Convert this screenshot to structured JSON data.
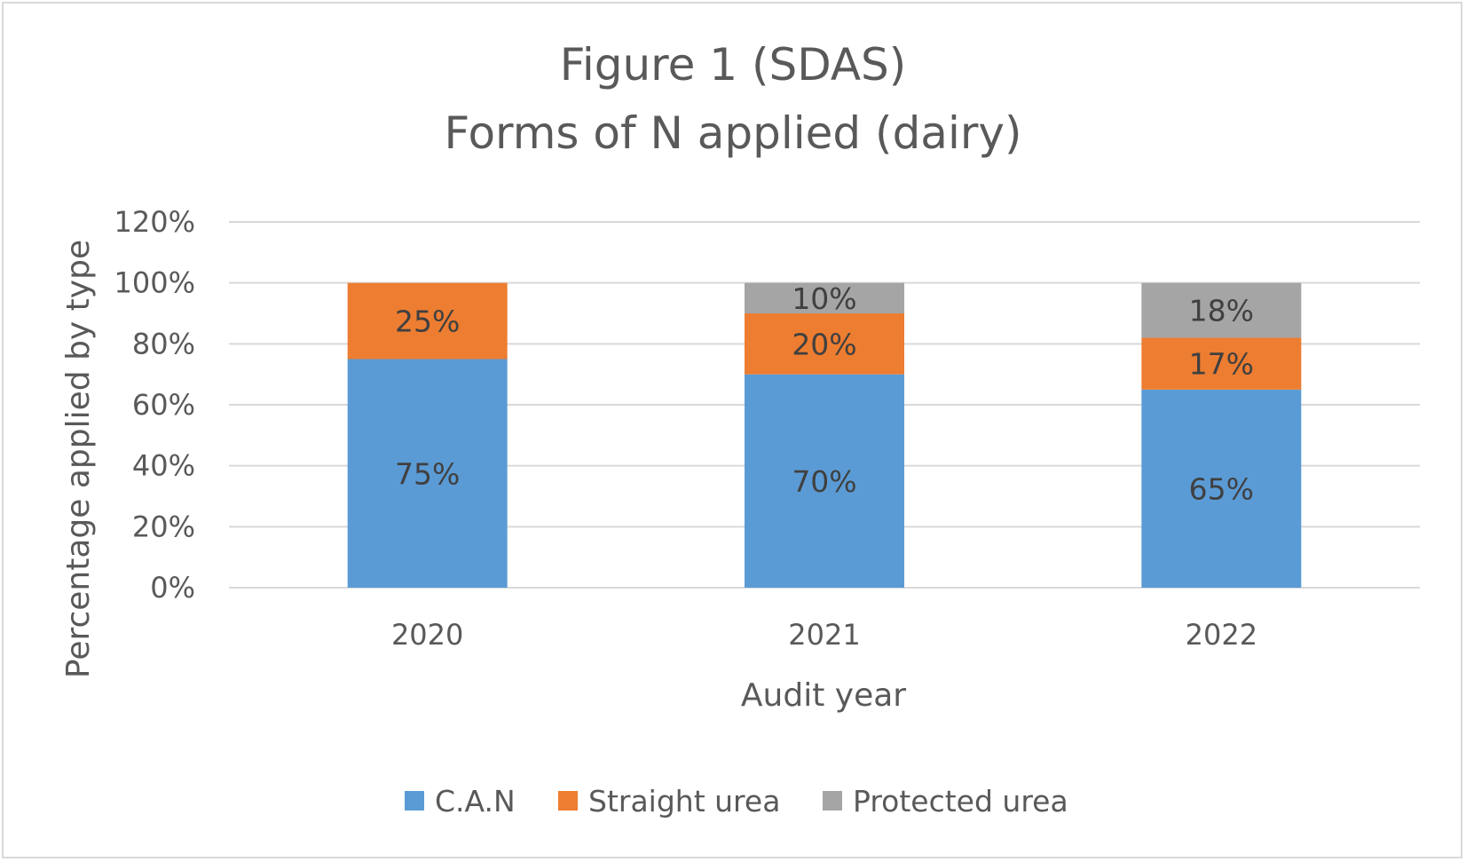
{
  "chart_data": {
    "type": "bar",
    "stacked": true,
    "title": [
      "Figure 1 (SDAS)",
      "Forms of N applied (dairy)"
    ],
    "xlabel": "Audit year",
    "ylabel": "Percentage applied by type",
    "categories": [
      "2020",
      "2021",
      "2022"
    ],
    "ylim": [
      0,
      120
    ],
    "yticks": [
      0,
      20,
      40,
      60,
      80,
      100,
      120
    ],
    "ytick_labels": [
      "0%",
      "20%",
      "40%",
      "60%",
      "80%",
      "100%",
      "120%"
    ],
    "grid": true,
    "legend_position": "bottom",
    "series": [
      {
        "name": "C.A.N",
        "color": "#5b9bd5",
        "values": [
          75,
          70,
          65
        ],
        "labels": [
          "75%",
          "70%",
          "65%"
        ]
      },
      {
        "name": "Straight urea",
        "color": "#ed7d31",
        "values": [
          25,
          20,
          17
        ],
        "labels": [
          "25%",
          "20%",
          "17%"
        ]
      },
      {
        "name": "Protected urea",
        "color": "#a5a5a5",
        "values": [
          0,
          10,
          18
        ],
        "labels": [
          "",
          "10%",
          "18%"
        ]
      }
    ]
  }
}
